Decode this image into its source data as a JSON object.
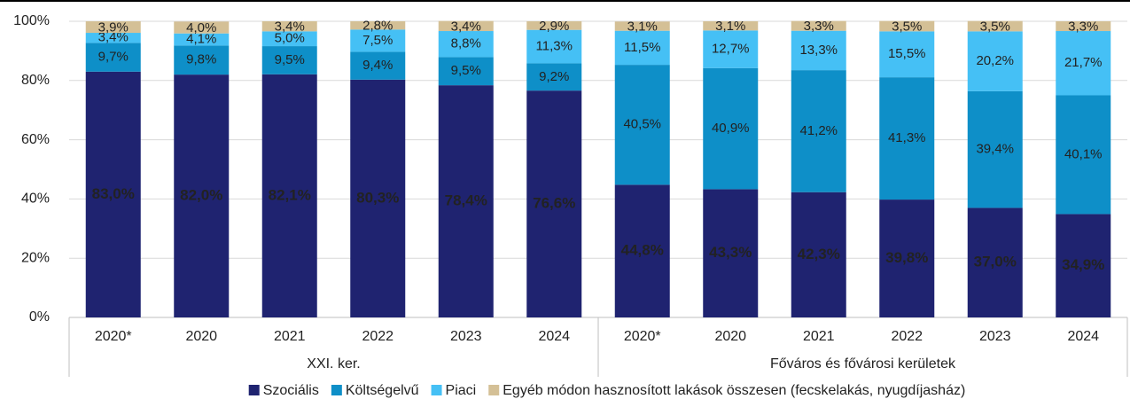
{
  "chart_data": {
    "type": "stacked_bar",
    "groups": [
      {
        "name": "XXI. ker.",
        "categories": [
          "2020*",
          "2020",
          "2021",
          "2022",
          "2023",
          "2024"
        ]
      },
      {
        "name": "Főváros és fővárosi kerületek",
        "categories": [
          "2020*",
          "2020",
          "2021",
          "2022",
          "2023",
          "2024"
        ]
      }
    ],
    "series": [
      {
        "name": "Szociális",
        "color": "#1f2370",
        "values": [
          83.0,
          82.0,
          82.1,
          80.3,
          78.4,
          76.6,
          44.8,
          43.3,
          42.3,
          39.8,
          37.0,
          34.9
        ],
        "value_labels": [
          "83,0%",
          "82,0%",
          "82,1%",
          "80,3%",
          "78,4%",
          "76,6%",
          "44,8%",
          "43,3%",
          "42,3%",
          "39,8%",
          "37,0%",
          "34,9%"
        ]
      },
      {
        "name": "Költségelvű",
        "color": "#0e8fc8",
        "values": [
          9.7,
          9.8,
          9.5,
          9.4,
          9.5,
          9.2,
          40.5,
          40.9,
          41.2,
          41.3,
          39.4,
          40.1
        ],
        "value_labels": [
          "9,7%",
          "9,8%",
          "9,5%",
          "9,4%",
          "9,5%",
          "9,2%",
          "40,5%",
          "40,9%",
          "41,2%",
          "41,3%",
          "39,4%",
          "40,1%"
        ]
      },
      {
        "name": "Piaci",
        "color": "#45c0f5",
        "values": [
          3.4,
          4.1,
          5.0,
          7.5,
          8.8,
          11.3,
          11.5,
          12.7,
          13.3,
          15.5,
          20.2,
          21.7
        ],
        "value_labels": [
          "3,4%",
          "4,1%",
          "5,0%",
          "7,5%",
          "8,8%",
          "11,3%",
          "11,5%",
          "12,7%",
          "13,3%",
          "15,5%",
          "20,2%",
          "21,7%"
        ]
      },
      {
        "name": "Egyéb módon hasznosított lakások összesen (fecskelakás, nyugdíjasház)",
        "color": "#d4c096",
        "values": [
          3.9,
          4.0,
          3.4,
          2.8,
          3.4,
          2.9,
          3.1,
          3.1,
          3.3,
          3.5,
          3.5,
          3.3
        ],
        "value_labels": [
          "3,9%",
          "4,0%",
          "3,4%",
          "2,8%",
          "3,4%",
          "2,9%",
          "3,1%",
          "3,1%",
          "3,3%",
          "3,5%",
          "3,5%",
          "3,3%"
        ]
      }
    ],
    "ylim": [
      0,
      100
    ],
    "yticks": [
      {
        "value": 0,
        "label": "0%"
      },
      {
        "value": 20,
        "label": "20%"
      },
      {
        "value": 40,
        "label": "40%"
      },
      {
        "value": 60,
        "label": "60%"
      },
      {
        "value": 80,
        "label": "80%"
      },
      {
        "value": 100,
        "label": "100%"
      }
    ],
    "grid": true,
    "legend": "bottom"
  }
}
